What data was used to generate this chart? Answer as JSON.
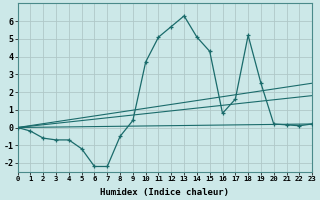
{
  "xlabel": "Humidex (Indice chaleur)",
  "xlim": [
    0,
    23
  ],
  "ylim": [
    -2.5,
    7
  ],
  "yticks": [
    -2,
    -1,
    0,
    1,
    2,
    3,
    4,
    5,
    6
  ],
  "xticks": [
    0,
    1,
    2,
    3,
    4,
    5,
    6,
    7,
    8,
    9,
    10,
    11,
    12,
    13,
    14,
    15,
    16,
    17,
    18,
    19,
    20,
    21,
    22,
    23
  ],
  "background_color": "#cce8e8",
  "grid_color": "#b0c8c8",
  "line_color": "#1a6b6b",
  "main_series": {
    "x": [
      0,
      1,
      2,
      3,
      4,
      5,
      6,
      7,
      8,
      9,
      10,
      11,
      12,
      13,
      14,
      15,
      16,
      17,
      18,
      19,
      20,
      21,
      22,
      23
    ],
    "y": [
      0.0,
      -0.2,
      -0.6,
      -0.7,
      -0.7,
      -1.2,
      -2.2,
      -2.2,
      -0.5,
      0.4,
      3.7,
      5.1,
      5.7,
      6.3,
      5.1,
      4.3,
      0.8,
      1.6,
      5.2,
      2.5,
      0.2,
      0.15,
      0.1,
      0.2
    ]
  },
  "straight_lines": [
    {
      "x": [
        0,
        23
      ],
      "y": [
        0.0,
        0.2
      ]
    },
    {
      "x": [
        0,
        23
      ],
      "y": [
        0.0,
        1.8
      ]
    },
    {
      "x": [
        0,
        23
      ],
      "y": [
        0.0,
        2.5
      ]
    }
  ]
}
